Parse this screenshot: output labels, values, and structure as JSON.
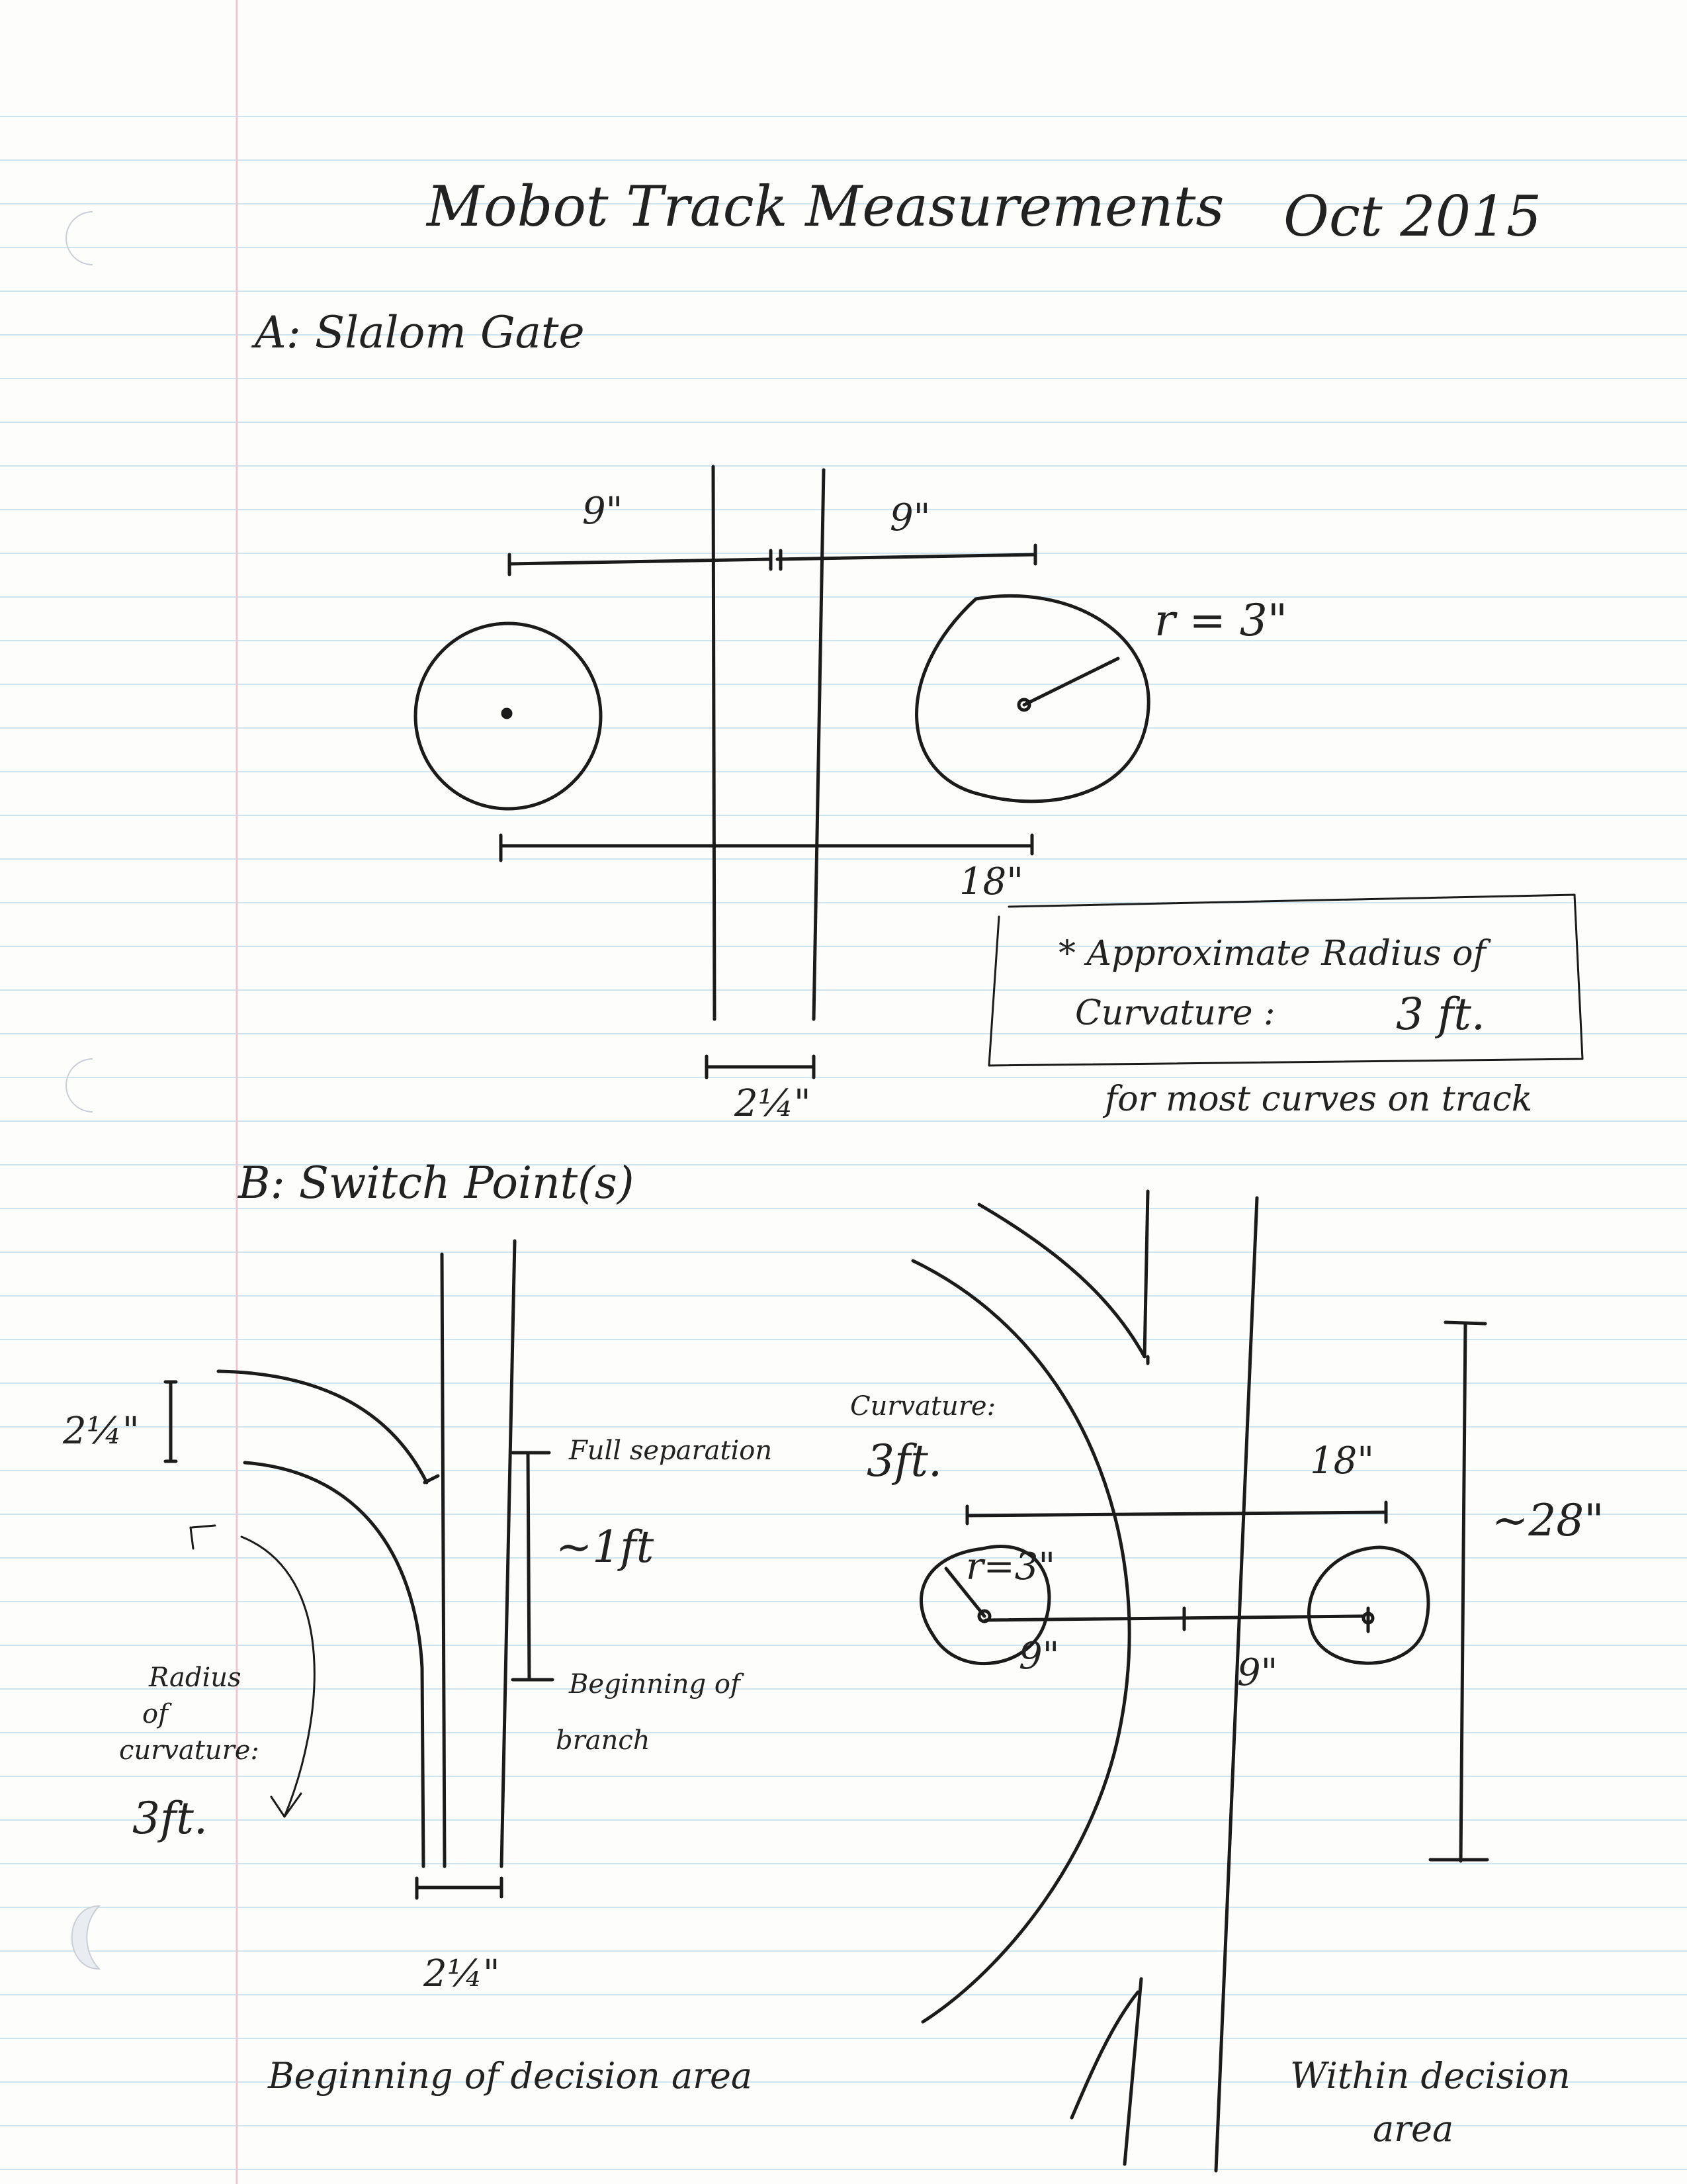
{
  "title": "Mobot Track Measurements",
  "date": "Oct 2015",
  "section_a": {
    "heading": "A: Slalom Gate",
    "dim_left": "9\"",
    "dim_right": "9\"",
    "radius": "r = 3\"",
    "dim_total": "18\"",
    "line_width": "2¼\"",
    "note_line1": "* Approximate Radius of",
    "note_label": "Curvature :",
    "note_value": "3 ft.",
    "note_footer": "for most curves on track"
  },
  "section_b": {
    "heading": "B: Switch Point(s)",
    "left": {
      "width_top": "2¼\"",
      "full_sep": "Full separation",
      "sep_length": "~1ft",
      "branch_begin_1": "Beginning of",
      "branch_begin_2": "branch",
      "radius_1": "Radius",
      "radius_2": "of",
      "radius_3": "curvature:",
      "radius_value": "3ft.",
      "width_bottom": "2¼\"",
      "caption": "Beginning of decision area"
    },
    "right": {
      "curvature_label": "Curvature:",
      "curvature_value": "3ft.",
      "dim_total": "18\"",
      "radius": "r=3\"",
      "dim_left": "9\"",
      "dim_right": "9\"",
      "height": "~28\"",
      "caption_1": "Within decision",
      "caption_2": "area"
    }
  }
}
